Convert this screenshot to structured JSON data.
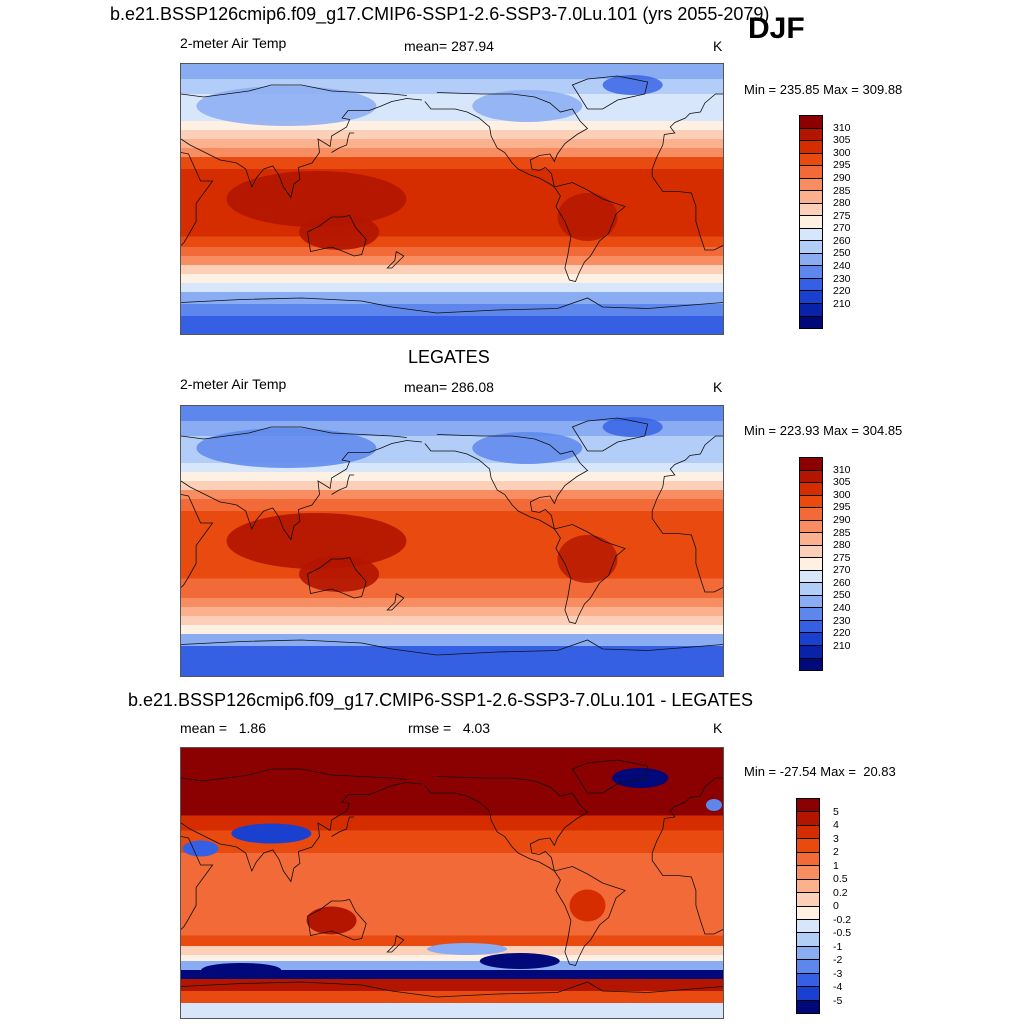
{
  "season": "DJF",
  "panels": [
    {
      "title": "b.e21.BSSP126cmip6.f09_g17.CMIP6-SSP1-2.6-SSP3-7.0Lu.101 (yrs 2055-2079)",
      "left_label": "2-meter Air Temp",
      "center_label": "mean= 287.94",
      "right_label": "K",
      "minmax": "Min = 235.85 Max = 309.88",
      "colorbar_labels": [
        "310",
        "305",
        "300",
        "295",
        "290",
        "285",
        "280",
        "275",
        "270",
        "260",
        "250",
        "240",
        "230",
        "220",
        "210"
      ],
      "colors": [
        "#8b0000",
        "#b31500",
        "#d52d00",
        "#e84a10",
        "#f26a37",
        "#f78d60",
        "#fbb08e",
        "#fcd0b8",
        "#fef0e3",
        "#d8e6fb",
        "#b2cdf7",
        "#89acf2",
        "#5d87ec",
        "#3560e4",
        "#1a40d0",
        "#0a22a8",
        "#00087a"
      ],
      "field_type": "absolute"
    },
    {
      "title": "LEGATES",
      "left_label": "2-meter Air Temp",
      "center_label": "mean= 286.08",
      "right_label": "K",
      "minmax": "Min = 223.93 Max = 304.85",
      "colorbar_labels": [
        "310",
        "305",
        "300",
        "295",
        "290",
        "285",
        "280",
        "275",
        "270",
        "260",
        "250",
        "240",
        "230",
        "220",
        "210"
      ],
      "colors": [
        "#8b0000",
        "#b31500",
        "#d52d00",
        "#e84a10",
        "#f26a37",
        "#f78d60",
        "#fbb08e",
        "#fcd0b8",
        "#fef0e3",
        "#d8e6fb",
        "#b2cdf7",
        "#89acf2",
        "#5d87ec",
        "#3560e4",
        "#1a40d0",
        "#0a22a8",
        "#00087a"
      ],
      "field_type": "absolute"
    },
    {
      "title": "b.e21.BSSP126cmip6.f09_g17.CMIP6-SSP1-2.6-SSP3-7.0Lu.101 - LEGATES",
      "left_label": "mean =   1.86",
      "center_label": "rmse =   4.03",
      "right_label": "K",
      "minmax": "Min = -27.54 Max =  20.83",
      "colorbar_labels": [
        "5",
        "4",
        "3",
        "2",
        "1",
        "0.5",
        "0.2",
        "0",
        "-0.2",
        "-0.5",
        "-1",
        "-2",
        "-3",
        "-4",
        "-5"
      ],
      "colors": [
        "#8b0000",
        "#b31500",
        "#d52d00",
        "#e84a10",
        "#f26a37",
        "#f78d60",
        "#fbb08e",
        "#fcd0b8",
        "#fef0e3",
        "#d8e6fb",
        "#b2cdf7",
        "#89acf2",
        "#5d87ec",
        "#3560e4",
        "#1a40d0",
        "#00087a"
      ],
      "field_type": "difference"
    }
  ]
}
